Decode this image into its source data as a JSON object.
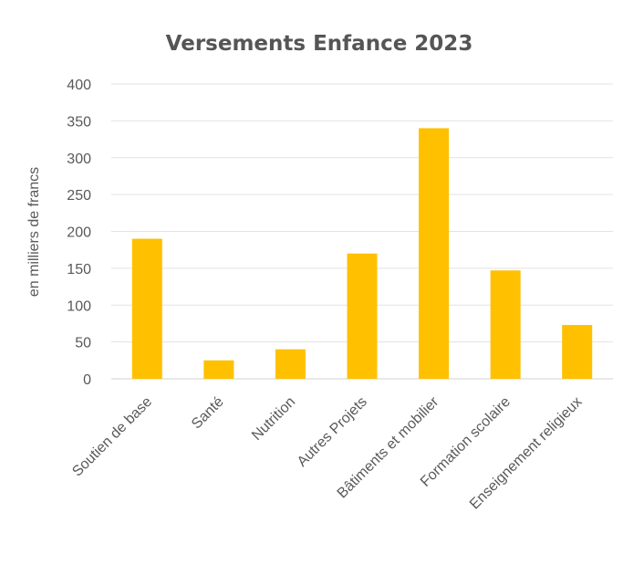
{
  "chart_data": {
    "type": "bar",
    "title": "Versements Enfance 2023",
    "xlabel": "",
    "ylabel": "en milliers de francs",
    "categories": [
      "Soutien de base",
      "Santé",
      "Nutrition",
      "Autres Projets",
      "Bâtiments et mobilier",
      "Formation scolaire",
      "Enseignement religieux"
    ],
    "values": [
      190,
      25,
      40,
      170,
      340,
      147,
      73
    ],
    "ylim": [
      0,
      400
    ],
    "yticks": [
      0,
      50,
      100,
      150,
      200,
      250,
      300,
      350,
      400
    ],
    "bar_color": "#FFC000",
    "grid": true,
    "legend": "none"
  }
}
